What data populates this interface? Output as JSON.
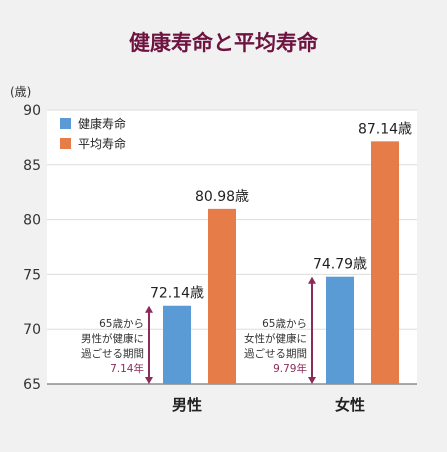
{
  "chart_data": {
    "type": "bar",
    "title": "健康寿命と平均寿命",
    "ylabel": "(歳)",
    "ylim": [
      65,
      90
    ],
    "yticks": [
      65,
      70,
      75,
      80,
      85,
      90
    ],
    "categories": [
      "男性",
      "女性"
    ],
    "series": [
      {
        "name": "健康寿命",
        "values": [
          72.14,
          74.79
        ],
        "color": "#5a9bd5"
      },
      {
        "name": "平均寿命",
        "values": [
          80.98,
          87.14
        ],
        "color": "#e67c47"
      }
    ],
    "value_labels": [
      [
        "72.14歳",
        "74.79歳"
      ],
      [
        "80.98歳",
        "87.14歳"
      ]
    ],
    "legend": "top-left",
    "grid": true,
    "annotations": [
      {
        "lines": [
          "65歳から",
          "男性が健康に",
          "過ごせる期間"
        ],
        "highlight": "7.14年"
      },
      {
        "lines": [
          "65歳から",
          "女性が健康に",
          "過ごせる期間"
        ],
        "highlight": "9.79年"
      }
    ],
    "annotation_color": "#8c2a5a",
    "plot_bg": "#ffffff",
    "grid_color": "#dddddd"
  }
}
